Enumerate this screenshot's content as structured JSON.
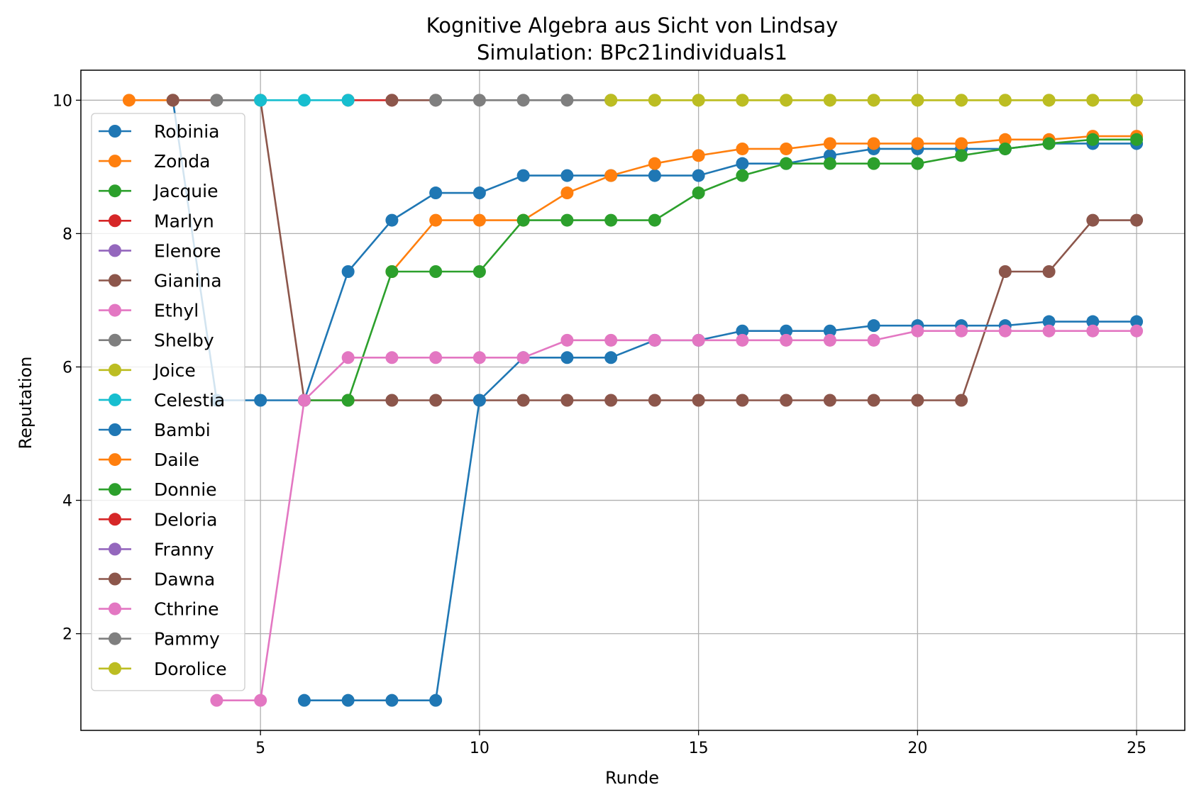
{
  "chart_data": {
    "type": "line",
    "title": "Kognitive Algebra aus Sicht von Lindsay",
    "subtitle": "Simulation: BPc21individuals1",
    "xlabel": "Runde",
    "ylabel": "Reputation",
    "xlim": [
      0.9,
      26.1
    ],
    "ylim": [
      0.55,
      10.45
    ],
    "xticks": [
      5,
      10,
      15,
      20,
      25
    ],
    "yticks": [
      2,
      4,
      6,
      8,
      10
    ],
    "grid": true,
    "legend_position": "upper-left",
    "series": [
      {
        "name": "Robinia",
        "color": "#1f77b4",
        "x": [
          3,
          4,
          5,
          6,
          7,
          8,
          9,
          10,
          11,
          12,
          13,
          14,
          15,
          16,
          17,
          18,
          19,
          20,
          21,
          22,
          23,
          24,
          25
        ],
        "y": [
          10,
          5.5,
          5.5,
          5.5,
          7.43,
          8.2,
          8.61,
          8.61,
          8.87,
          8.87,
          8.87,
          8.87,
          8.87,
          9.05,
          9.05,
          9.17,
          9.27,
          9.27,
          9.27,
          9.27,
          9.35,
          9.35,
          9.35
        ]
      },
      {
        "name": "Zonda",
        "color": "#ff7f0e",
        "x": [
          2,
          3
        ],
        "y": [
          10,
          10
        ]
      },
      {
        "name": "Jacquie",
        "color": "#2ca02c",
        "x": [],
        "y": []
      },
      {
        "name": "Marlyn",
        "color": "#d62728",
        "x": [
          7,
          8
        ],
        "y": [
          10,
          10
        ]
      },
      {
        "name": "Elenore",
        "color": "#9467bd",
        "x": [],
        "y": []
      },
      {
        "name": "Gianina",
        "color": "#8c564b",
        "x": [
          3,
          4,
          5,
          6,
          7,
          8,
          9,
          10,
          11,
          12,
          13,
          14,
          15,
          16,
          17,
          18,
          19,
          20,
          21,
          22,
          23,
          24,
          25
        ],
        "y": [
          10,
          10,
          10,
          5.5,
          5.5,
          5.5,
          5.5,
          5.5,
          5.5,
          5.5,
          5.5,
          5.5,
          5.5,
          5.5,
          5.5,
          5.5,
          5.5,
          5.5,
          5.5,
          7.43,
          7.43,
          8.2,
          8.2
        ]
      },
      {
        "name": "Ethyl",
        "color": "#e377c2",
        "x": [],
        "y": []
      },
      {
        "name": "Shelby",
        "color": "#7f7f7f",
        "x": [
          4,
          5
        ],
        "y": [
          10,
          10
        ]
      },
      {
        "name": "Joice",
        "color": "#bcbd22",
        "x": [
          13,
          14,
          15,
          16,
          17,
          18,
          19,
          20,
          21,
          22,
          23,
          24,
          25
        ],
        "y": [
          10,
          10,
          10,
          10,
          10,
          10,
          10,
          10,
          10,
          10,
          10,
          10,
          10
        ]
      },
      {
        "name": "Celestia",
        "color": "#17becf",
        "x": [
          5,
          6,
          7
        ],
        "y": [
          10,
          10,
          10
        ]
      },
      {
        "name": "Bambi",
        "color": "#1f77b4",
        "x": [
          6,
          7,
          8,
          9,
          10,
          11,
          12,
          13,
          14,
          15,
          16,
          17,
          18,
          19,
          20,
          21,
          22,
          23,
          24,
          25
        ],
        "y": [
          1,
          1,
          1,
          1,
          5.5,
          6.14,
          6.14,
          6.14,
          6.4,
          6.4,
          6.54,
          6.54,
          6.54,
          6.62,
          6.62,
          6.62,
          6.62,
          6.68,
          6.68,
          6.68
        ]
      },
      {
        "name": "Daile",
        "color": "#ff7f0e",
        "x": [
          8,
          9,
          10,
          11,
          12,
          13,
          14,
          15,
          16,
          17,
          18,
          19,
          20,
          21,
          22,
          23,
          24,
          25
        ],
        "y": [
          7.43,
          8.2,
          8.2,
          8.2,
          8.61,
          8.87,
          9.05,
          9.17,
          9.27,
          9.27,
          9.35,
          9.35,
          9.35,
          9.35,
          9.41,
          9.41,
          9.46,
          9.46
        ]
      },
      {
        "name": "Donnie",
        "color": "#2ca02c",
        "x": [
          6,
          7,
          8,
          9,
          10,
          11,
          12,
          13,
          14,
          15,
          16,
          17,
          18,
          19,
          20,
          21,
          22,
          23,
          24,
          25
        ],
        "y": [
          5.5,
          5.5,
          7.43,
          7.43,
          7.43,
          8.2,
          8.2,
          8.2,
          8.2,
          8.61,
          8.87,
          9.05,
          9.05,
          9.05,
          9.05,
          9.17,
          9.27,
          9.35,
          9.41,
          9.41
        ]
      },
      {
        "name": "Deloria",
        "color": "#d62728",
        "x": [],
        "y": []
      },
      {
        "name": "Franny",
        "color": "#9467bd",
        "x": [],
        "y": []
      },
      {
        "name": "Dawna",
        "color": "#8c564b",
        "x": [
          8,
          9
        ],
        "y": [
          10,
          10
        ]
      },
      {
        "name": "Cthrine",
        "color": "#e377c2",
        "x": [
          4,
          5,
          6,
          7,
          8,
          9,
          10,
          11,
          12,
          13,
          14,
          15,
          16,
          17,
          18,
          19,
          20,
          21,
          22,
          23,
          24,
          25
        ],
        "y": [
          1,
          1,
          5.5,
          6.14,
          6.14,
          6.14,
          6.14,
          6.14,
          6.4,
          6.4,
          6.4,
          6.4,
          6.4,
          6.4,
          6.4,
          6.4,
          6.54,
          6.54,
          6.54,
          6.54,
          6.54,
          6.54
        ]
      },
      {
        "name": "Pammy",
        "color": "#7f7f7f",
        "x": [
          9,
          10,
          11,
          12,
          13
        ],
        "y": [
          10,
          10,
          10,
          10,
          10
        ]
      },
      {
        "name": "Dorolice",
        "color": "#bcbd22",
        "x": [
          13,
          14,
          15,
          16,
          17,
          18,
          19,
          20,
          21,
          22,
          23,
          24,
          25
        ],
        "y": [
          10,
          10,
          10,
          10,
          10,
          10,
          10,
          10,
          10,
          10,
          10,
          10,
          10
        ]
      }
    ]
  }
}
